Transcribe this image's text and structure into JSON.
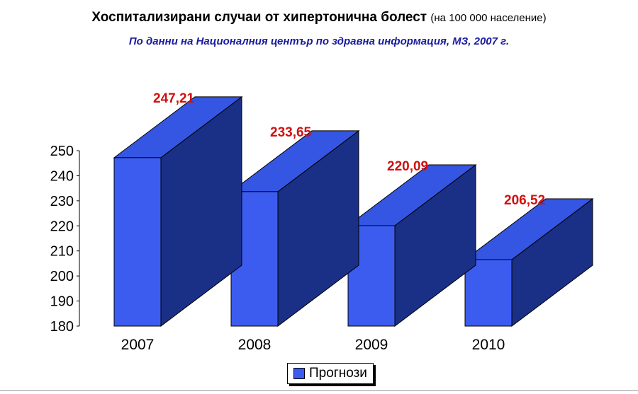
{
  "title": {
    "main": "Хоспитализирани случаи от хипертонична болест",
    "note": "(на 100 000 население)"
  },
  "subtitle": "По данни на Националния център по здравна информация, МЗ, 2007 г.",
  "legend": {
    "label": "Прогнози"
  },
  "colors": {
    "front": "#3c5cf0",
    "side": "#1a2f86",
    "top": "#3556e2",
    "label": "#d01010",
    "subtitle": "#1a1aa0"
  },
  "chart_data": {
    "type": "bar",
    "categories": [
      "2007",
      "2008",
      "2009",
      "2010"
    ],
    "series": [
      {
        "name": "Прогнози",
        "values": [
          247.21,
          233.65,
          220.09,
          206.52
        ]
      }
    ],
    "data_labels": [
      "247,21",
      "233,65",
      "220,09",
      "206,52"
    ],
    "yticks": [
      "180",
      "190",
      "200",
      "210",
      "220",
      "230",
      "240",
      "250"
    ],
    "ylim": [
      180,
      250
    ],
    "legend_position": "bottom",
    "grid": false,
    "3d": true
  }
}
